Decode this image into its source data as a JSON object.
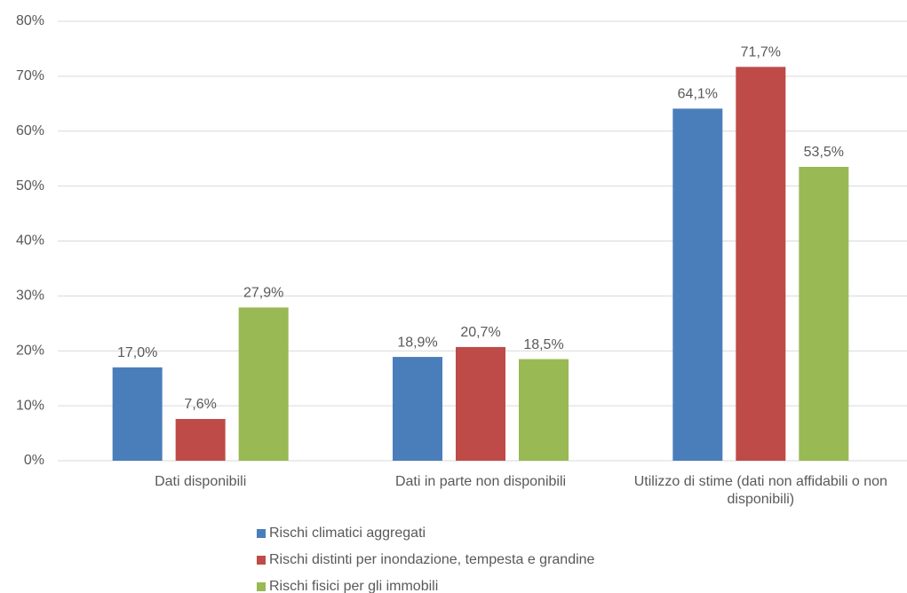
{
  "chart_data": {
    "type": "bar",
    "categories": [
      "Dati disponibili",
      "Dati in parte non disponibili",
      "Utilizzo di stime (dati non affidabili o non disponibili)"
    ],
    "series": [
      {
        "name": "Rischi climatici aggregati",
        "color": "#4a7ebb",
        "values": [
          17.0,
          18.9,
          64.1
        ],
        "value_labels": [
          "17,0%",
          "18,9%",
          "64,1%"
        ]
      },
      {
        "name": "Rischi distinti per inondazione, tempesta e grandine",
        "color": "#be4b48",
        "values": [
          7.6,
          20.7,
          71.7
        ],
        "value_labels": [
          "7,6%",
          "20,7%",
          "71,7%"
        ]
      },
      {
        "name": "Rischi fisici per gli immobili",
        "color": "#98b954",
        "values": [
          27.9,
          18.5,
          53.5
        ],
        "value_labels": [
          "27,9%",
          "18,5%",
          "53,5%"
        ]
      }
    ],
    "ylim": [
      0,
      80
    ],
    "yticks": [
      {
        "value": 0,
        "label": "0%"
      },
      {
        "value": 10,
        "label": "10%"
      },
      {
        "value": 20,
        "label": "20%"
      },
      {
        "value": 30,
        "label": "30%"
      },
      {
        "value": 40,
        "label": "40%"
      },
      {
        "value": 50,
        "label": "50%"
      },
      {
        "value": 60,
        "label": "60%"
      },
      {
        "value": 70,
        "label": "70%"
      },
      {
        "value": 80,
        "label": "80%"
      }
    ],
    "grid": true,
    "legend": "bottom"
  }
}
